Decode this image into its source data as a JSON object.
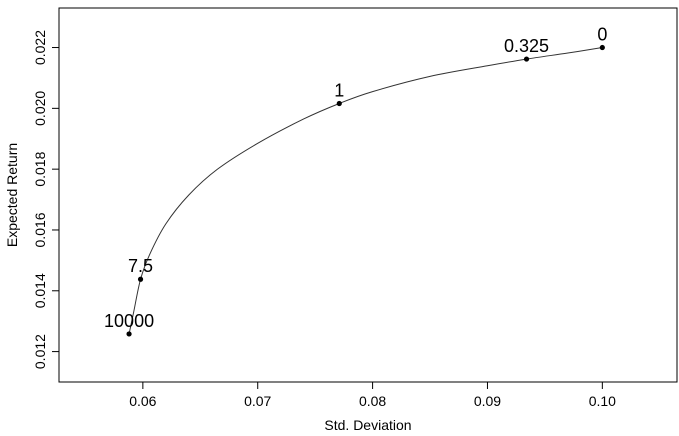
{
  "chart_data": {
    "type": "line",
    "title": "",
    "xlabel": "Std. Deviation",
    "ylabel": "Expected Return",
    "xlim": [
      0.0527,
      0.1065
    ],
    "ylim": [
      0.011,
      0.0233
    ],
    "xticks": [
      {
        "value": 0.06,
        "label": "0.06"
      },
      {
        "value": 0.07,
        "label": "0.07"
      },
      {
        "value": 0.08,
        "label": "0.08"
      },
      {
        "value": 0.09,
        "label": "0.09"
      },
      {
        "value": 0.1,
        "label": "0.10"
      }
    ],
    "yticks": [
      {
        "value": 0.012,
        "label": "0.012"
      },
      {
        "value": 0.014,
        "label": "0.014"
      },
      {
        "value": 0.016,
        "label": "0.016"
      },
      {
        "value": 0.018,
        "label": "0.018"
      },
      {
        "value": 0.02,
        "label": "0.020"
      },
      {
        "value": 0.022,
        "label": "0.022"
      }
    ],
    "curve": {
      "x": [
        0.0588,
        0.0592,
        0.0598,
        0.0606,
        0.062,
        0.064,
        0.0665,
        0.07,
        0.074,
        0.0771,
        0.08,
        0.085,
        0.09,
        0.0934,
        0.097,
        0.1
      ],
      "y": [
        0.01258,
        0.0133,
        0.01438,
        0.0152,
        0.0162,
        0.01715,
        0.018,
        0.01885,
        0.01965,
        0.02016,
        0.02055,
        0.02105,
        0.0214,
        0.02162,
        0.02182,
        0.022
      ]
    },
    "points": [
      {
        "label": "10000",
        "x": 0.0588,
        "y": 0.01258
      },
      {
        "label": "7.5",
        "x": 0.0598,
        "y": 0.01438
      },
      {
        "label": "1",
        "x": 0.0771,
        "y": 0.02016
      },
      {
        "label": "0.325",
        "x": 0.0934,
        "y": 0.02162
      },
      {
        "label": "0",
        "x": 0.1,
        "y": 0.022
      }
    ],
    "grid": false,
    "legend": "none"
  }
}
